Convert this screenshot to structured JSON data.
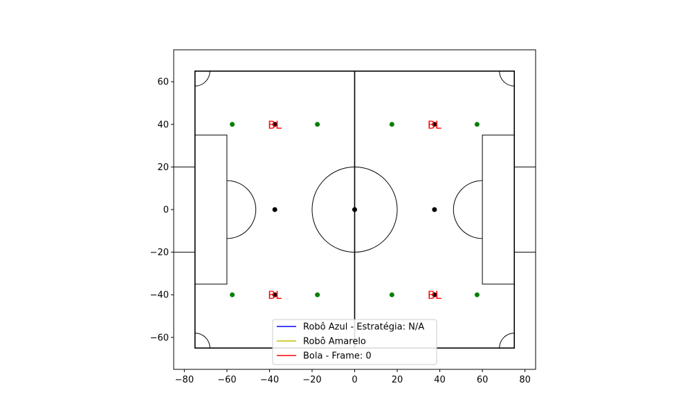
{
  "chart_data": {
    "type": "scatter",
    "title": "",
    "xlabel": "",
    "ylabel": "",
    "xlim": [
      -85,
      85
    ],
    "ylim": [
      -75,
      75
    ],
    "grid": false,
    "aspect": "equal",
    "x_ticks": [
      -80,
      -60,
      -40,
      -20,
      0,
      20,
      40,
      60,
      80
    ],
    "x_tick_labels": [
      "−80",
      "−60",
      "−40",
      "−20",
      "0",
      "20",
      "40",
      "60",
      "80"
    ],
    "y_ticks": [
      -60,
      -40,
      -20,
      0,
      20,
      40,
      60
    ],
    "y_tick_labels": [
      "−60",
      "−40",
      "−20",
      "0",
      "20",
      "40",
      "60"
    ],
    "field": {
      "x_min": -75,
      "x_max": 75,
      "y_min": -65,
      "y_max": 65,
      "center_circle_radius": 20,
      "penalty_area_depth": 15,
      "penalty_area_half_width": 35,
      "penalty_arc_radius": 13.6,
      "goal_depth": 10,
      "goal_half_width": 20,
      "corner_arc_radius": 7,
      "line_color": "#000000"
    },
    "series": [
      {
        "color": "#000000",
        "points": [
          [
            0,
            0
          ],
          [
            -37.5,
            0
          ],
          [
            37.5,
            0
          ],
          [
            -37.5,
            40
          ],
          [
            37.5,
            40
          ],
          [
            -37.5,
            -40
          ],
          [
            37.5,
            -40
          ]
        ]
      },
      {
        "color": "#008000",
        "points": [
          [
            -57.5,
            40
          ],
          [
            -17.5,
            40
          ],
          [
            17.5,
            40
          ],
          [
            57.5,
            40
          ],
          [
            -57.5,
            -40
          ],
          [
            -17.5,
            -40
          ],
          [
            17.5,
            -40
          ],
          [
            57.5,
            -40
          ]
        ]
      }
    ],
    "annotations": [
      {
        "text": "BL",
        "x": -37.5,
        "y": 40,
        "color": "#ff0000"
      },
      {
        "text": "BL",
        "x": 37.5,
        "y": 40,
        "color": "#ff0000"
      },
      {
        "text": "BL",
        "x": -37.5,
        "y": -40,
        "color": "#ff0000"
      },
      {
        "text": "BL",
        "x": 37.5,
        "y": -40,
        "color": "#ff0000"
      }
    ],
    "legend": {
      "position": "lower-center",
      "entries": [
        {
          "label": "Robô Azul - Estratégia: N/A",
          "color": "#0000ff"
        },
        {
          "label": "Robô Amarelo",
          "color": "#bfbf00"
        },
        {
          "label": "Bola - Frame: 0",
          "color": "#ff0000"
        }
      ]
    }
  }
}
